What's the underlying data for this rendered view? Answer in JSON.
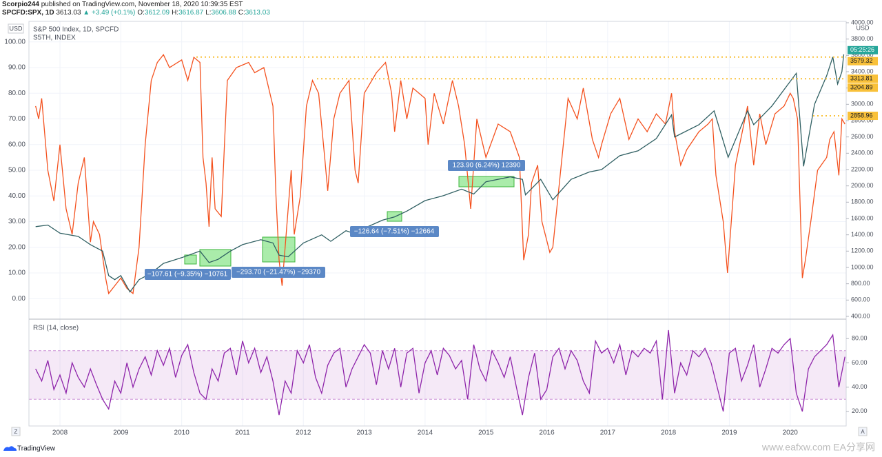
{
  "header": {
    "author": "Scorpio244",
    "published": "published on TradingView.com, November 18, 2020 10:39:35 EST",
    "symbol": "SPCFD:SPX, 1D",
    "last": "3613.03",
    "change": "▲ +3.49 (+0.1%)",
    "ohlc": [
      {
        "key": "O:",
        "value": "3612.09"
      },
      {
        "key": "H:",
        "value": "3616.87"
      },
      {
        "key": "L:",
        "value": "3606.88"
      },
      {
        "key": "C:",
        "value": "3613.03"
      }
    ]
  },
  "chart_data": [
    {
      "type": "line",
      "y_unit": "USD",
      "y2_unit": "USD",
      "countdown": "05:25:26",
      "countdown_color": "#26a69a",
      "xlim": [
        2007.49,
        2020.92
      ],
      "ylim": [
        -8,
        108
      ],
      "yticks": [
        {
          "value": 0,
          "label": "0.00"
        },
        {
          "value": 10,
          "label": "10.00"
        },
        {
          "value": 20,
          "label": "20.00"
        },
        {
          "value": 30,
          "label": "30.00"
        },
        {
          "value": 40,
          "label": "40.00"
        },
        {
          "value": 50,
          "label": "50.00"
        },
        {
          "value": 60,
          "label": "60.00"
        },
        {
          "value": 70,
          "label": "70.00"
        },
        {
          "value": 80,
          "label": "80.00"
        },
        {
          "value": 90,
          "label": "90.00"
        },
        {
          "value": 100,
          "label": "100.00"
        }
      ],
      "y2lim": [
        366,
        4017
      ],
      "y2ticks": [
        {
          "value": 400,
          "label": "400.00"
        },
        {
          "value": 600,
          "label": "600.00"
        },
        {
          "value": 800,
          "label": "800.00"
        },
        {
          "value": 1000,
          "label": "1000.00"
        },
        {
          "value": 1200,
          "label": "1200.00"
        },
        {
          "value": 1400,
          "label": "1400.00"
        },
        {
          "value": 1600,
          "label": "1600.00"
        },
        {
          "value": 1800,
          "label": "1800.00"
        },
        {
          "value": 2000,
          "label": "2000.00"
        },
        {
          "value": 2200,
          "label": "2200.00"
        },
        {
          "value": 2400,
          "label": "2400.00"
        },
        {
          "value": 2600,
          "label": "2600.00"
        },
        {
          "value": 2800,
          "label": "2800.00"
        },
        {
          "value": 3000,
          "label": "3000.00"
        },
        {
          "value": 3200,
          "label": "3200.00"
        },
        {
          "value": 3400,
          "label": "3400.00"
        },
        {
          "value": 3600,
          "label": "3600.00"
        },
        {
          "value": 3800,
          "label": "3800.00"
        },
        {
          "value": 4000,
          "label": "4000.00"
        }
      ],
      "price_labels": [
        {
          "value": 3579.32,
          "label": "3579.32",
          "line": true
        },
        {
          "value": 3313.81,
          "label": "3313.81",
          "line": true
        },
        {
          "value": 3204.89,
          "label": "3204.89",
          "line": false
        },
        {
          "value": 2858.96,
          "label": "2858.96",
          "line": true
        }
      ],
      "price_label_color": "#f9c13a",
      "measurements": [
        "−107.61 (−9.35%) −10761",
        "−293.70 (−21.47%) −29370",
        "−126.64 (−7.51%) −12664",
        "123.90 (6.24%) 12390"
      ],
      "series": [
        {
          "name": "S5TH, INDEX",
          "color": "#f4511e",
          "x": [
            2007.6,
            2007.65,
            2007.7,
            2007.8,
            2007.9,
            2008.0,
            2008.1,
            2008.2,
            2008.3,
            2008.4,
            2008.5,
            2008.55,
            2008.65,
            2008.75,
            2008.8,
            2008.9,
            2009.0,
            2009.1,
            2009.2,
            2009.3,
            2009.4,
            2009.5,
            2009.6,
            2009.7,
            2009.8,
            2010.0,
            2010.1,
            2010.2,
            2010.3,
            2010.35,
            2010.4,
            2010.45,
            2010.5,
            2010.55,
            2010.65,
            2010.75,
            2010.9,
            2011.1,
            2011.2,
            2011.35,
            2011.5,
            2011.55,
            2011.6,
            2011.65,
            2011.7,
            2011.8,
            2011.85,
            2011.95,
            2012.05,
            2012.15,
            2012.25,
            2012.35,
            2012.4,
            2012.5,
            2012.6,
            2012.75,
            2012.85,
            2012.9,
            2013.0,
            2013.2,
            2013.35,
            2013.45,
            2013.5,
            2013.6,
            2013.7,
            2013.8,
            2014.0,
            2014.05,
            2014.15,
            2014.3,
            2014.45,
            2014.55,
            2014.65,
            2014.75,
            2014.85,
            2014.95,
            2015.0,
            2015.2,
            2015.4,
            2015.55,
            2015.62,
            2015.7,
            2015.75,
            2015.85,
            2015.92,
            2016.05,
            2016.1,
            2016.25,
            2016.35,
            2016.5,
            2016.6,
            2016.75,
            2016.85,
            2016.9,
            2017.05,
            2017.2,
            2017.35,
            2017.5,
            2017.65,
            2017.8,
            2017.95,
            2018.05,
            2018.1,
            2018.2,
            2018.3,
            2018.5,
            2018.65,
            2018.72,
            2018.78,
            2018.9,
            2018.97,
            2019.1,
            2019.3,
            2019.4,
            2019.5,
            2019.6,
            2019.75,
            2019.9,
            2020.0,
            2020.05,
            2020.12,
            2020.2,
            2020.25,
            2020.35,
            2020.45,
            2020.6,
            2020.65,
            2020.72,
            2020.8,
            2020.85,
            2020.9
          ],
          "values": [
            75,
            70,
            78,
            50,
            38,
            60,
            35,
            25,
            45,
            55,
            22,
            30,
            25,
            8,
            2,
            5,
            8,
            4,
            2,
            20,
            60,
            85,
            92,
            95,
            90,
            93,
            85,
            94,
            92,
            55,
            45,
            28,
            55,
            35,
            32,
            85,
            90,
            92,
            88,
            90,
            75,
            40,
            15,
            5,
            20,
            50,
            25,
            40,
            75,
            85,
            80,
            55,
            42,
            70,
            80,
            85,
            50,
            45,
            80,
            88,
            92,
            80,
            65,
            85,
            70,
            82,
            78,
            60,
            80,
            68,
            85,
            75,
            60,
            35,
            70,
            60,
            55,
            68,
            65,
            55,
            15,
            25,
            45,
            52,
            30,
            18,
            20,
            55,
            78,
            70,
            82,
            62,
            55,
            60,
            72,
            78,
            62,
            70,
            65,
            72,
            68,
            80,
            65,
            52,
            58,
            65,
            68,
            70,
            48,
            30,
            10,
            52,
            75,
            52,
            72,
            60,
            72,
            75,
            80,
            78,
            70,
            8,
            15,
            32,
            50,
            55,
            62,
            65,
            48,
            70,
            68
          ]
        },
        {
          "name": "S&P 500 Index, 1D, SPCFD",
          "color": "#2f5f62",
          "axis": "y2",
          "x": [
            2007.6,
            2007.8,
            2008.0,
            2008.3,
            2008.5,
            2008.7,
            2008.8,
            2008.9,
            2009.0,
            2009.15,
            2009.3,
            2009.5,
            2009.7,
            2010.0,
            2010.3,
            2010.45,
            2010.6,
            2010.8,
            2011.0,
            2011.3,
            2011.5,
            2011.6,
            2011.75,
            2012.0,
            2012.3,
            2012.45,
            2012.7,
            2012.9,
            2013.0,
            2013.3,
            2013.5,
            2013.7,
            2014.0,
            2014.3,
            2014.6,
            2014.8,
            2015.0,
            2015.4,
            2015.6,
            2015.65,
            2015.9,
            2016.1,
            2016.4,
            2016.7,
            2016.9,
            2017.2,
            2017.5,
            2017.8,
            2018.05,
            2018.1,
            2018.5,
            2018.75,
            2018.98,
            2019.3,
            2019.4,
            2019.7,
            2019.95,
            2020.1,
            2020.22,
            2020.4,
            2020.6,
            2020.7,
            2020.78,
            2020.85,
            2020.88
          ],
          "values": [
            1500,
            1520,
            1420,
            1380,
            1280,
            1200,
            900,
            850,
            900,
            700,
            850,
            930,
            1050,
            1120,
            1200,
            1060,
            1100,
            1200,
            1280,
            1340,
            1300,
            1150,
            1130,
            1300,
            1400,
            1320,
            1450,
            1400,
            1480,
            1580,
            1620,
            1690,
            1820,
            1880,
            1960,
            1900,
            2050,
            2110,
            2080,
            1890,
            2080,
            1830,
            2080,
            2170,
            2200,
            2370,
            2430,
            2580,
            2870,
            2600,
            2750,
            2920,
            2350,
            2920,
            2750,
            2980,
            3230,
            3380,
            2240,
            3000,
            3350,
            3580,
            3250,
            3400,
            3613
          ]
        }
      ]
    },
    {
      "type": "line",
      "xlim": [
        2007.49,
        2020.92
      ],
      "ylim": [
        8,
        96
      ],
      "yticks": [
        {
          "value": 20,
          "label": "20.00"
        },
        {
          "value": 40,
          "label": "40.00"
        },
        {
          "value": 60,
          "label": "60.00"
        },
        {
          "value": 80,
          "label": "80.00"
        }
      ],
      "band": [
        30,
        70
      ],
      "band_color": "#9c27b0",
      "xticks": [
        2008,
        2009,
        2010,
        2011,
        2012,
        2013,
        2014,
        2015,
        2016,
        2017,
        2018,
        2019,
        2020
      ],
      "series": [
        {
          "name": "RSI (14, close)",
          "color": "#8e24aa",
          "x": [
            2007.6,
            2007.7,
            2007.8,
            2007.9,
            2008.0,
            2008.1,
            2008.2,
            2008.3,
            2008.4,
            2008.5,
            2008.6,
            2008.7,
            2008.8,
            2008.9,
            2009.0,
            2009.1,
            2009.2,
            2009.3,
            2009.4,
            2009.5,
            2009.6,
            2009.7,
            2009.8,
            2009.9,
            2010.0,
            2010.1,
            2010.2,
            2010.3,
            2010.4,
            2010.5,
            2010.6,
            2010.7,
            2010.8,
            2010.9,
            2011.0,
            2011.1,
            2011.2,
            2011.3,
            2011.4,
            2011.5,
            2011.6,
            2011.7,
            2011.8,
            2011.9,
            2012.0,
            2012.1,
            2012.2,
            2012.3,
            2012.4,
            2012.5,
            2012.6,
            2012.7,
            2012.8,
            2012.9,
            2013.0,
            2013.1,
            2013.2,
            2013.3,
            2013.4,
            2013.5,
            2013.6,
            2013.7,
            2013.8,
            2013.9,
            2014.0,
            2014.1,
            2014.2,
            2014.3,
            2014.4,
            2014.5,
            2014.6,
            2014.7,
            2014.8,
            2014.9,
            2015.0,
            2015.1,
            2015.2,
            2015.3,
            2015.4,
            2015.5,
            2015.6,
            2015.7,
            2015.8,
            2015.9,
            2016.0,
            2016.1,
            2016.2,
            2016.3,
            2016.4,
            2016.5,
            2016.6,
            2016.7,
            2016.8,
            2016.9,
            2017.0,
            2017.1,
            2017.2,
            2017.3,
            2017.4,
            2017.5,
            2017.6,
            2017.7,
            2017.8,
            2017.9,
            2018.0,
            2018.1,
            2018.2,
            2018.3,
            2018.4,
            2018.5,
            2018.6,
            2018.7,
            2018.8,
            2018.9,
            2019.0,
            2019.1,
            2019.2,
            2019.3,
            2019.4,
            2019.5,
            2019.6,
            2019.7,
            2019.8,
            2019.9,
            2020.0,
            2020.1,
            2020.2,
            2020.3,
            2020.4,
            2020.5,
            2020.6,
            2020.7,
            2020.8,
            2020.9
          ],
          "values": [
            55,
            45,
            62,
            38,
            50,
            35,
            60,
            48,
            40,
            55,
            42,
            30,
            22,
            45,
            35,
            60,
            40,
            55,
            65,
            50,
            70,
            58,
            72,
            48,
            66,
            75,
            52,
            35,
            30,
            55,
            45,
            68,
            72,
            50,
            78,
            60,
            72,
            52,
            65,
            45,
            17,
            45,
            35,
            70,
            60,
            75,
            48,
            35,
            58,
            68,
            72,
            40,
            55,
            65,
            75,
            68,
            42,
            70,
            55,
            72,
            40,
            68,
            72,
            35,
            60,
            70,
            50,
            72,
            66,
            55,
            62,
            30,
            75,
            55,
            45,
            70,
            60,
            48,
            65,
            40,
            17,
            48,
            68,
            30,
            38,
            65,
            72,
            55,
            70,
            62,
            45,
            35,
            78,
            68,
            72,
            60,
            75,
            50,
            70,
            65,
            72,
            68,
            78,
            30,
            87,
            35,
            60,
            50,
            70,
            65,
            72,
            60,
            40,
            20,
            68,
            72,
            45,
            58,
            75,
            40,
            55,
            72,
            68,
            75,
            80,
            35,
            20,
            55,
            65,
            70,
            75,
            83,
            40,
            65
          ]
        }
      ]
    }
  ],
  "footer": {
    "brand": "TradingView",
    "watermark": "www.eafxw.com  EA分享网",
    "left_button": "Z",
    "right_button": "A"
  }
}
